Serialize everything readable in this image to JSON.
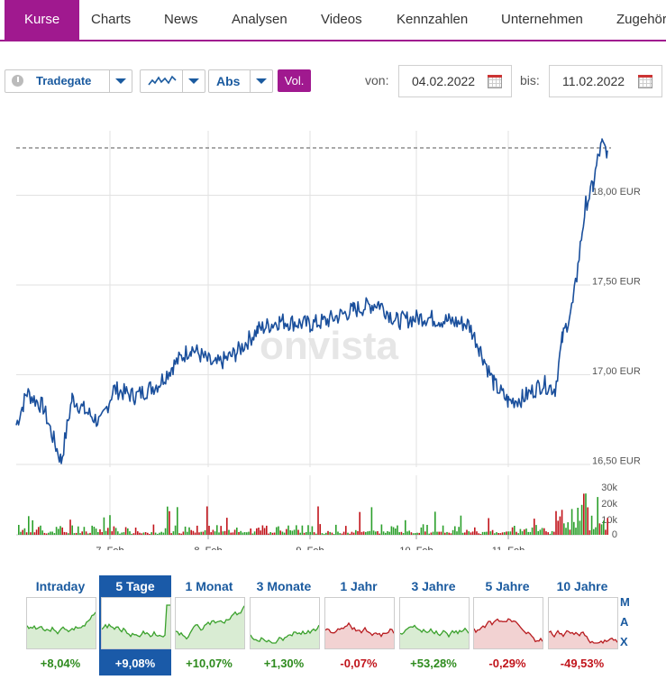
{
  "nav": {
    "tabs": [
      "Kurse",
      "Charts",
      "News",
      "Analysen",
      "Videos",
      "Kennzahlen",
      "Unternehmen",
      "Zugehör"
    ],
    "active": "Kurse"
  },
  "toolbar": {
    "exchange": "Tradegate",
    "chart_icon": "line-chart-icon",
    "mode": "Abs",
    "volume_toggle": "Vol.",
    "from_label": "von:",
    "from_date": "04.02.2022",
    "to_label": "bis:",
    "to_date": "11.02.2022"
  },
  "chart": {
    "watermark": "onvista",
    "y_labels": [
      "18,00 EUR",
      "17,50 EUR",
      "17,00 EUR",
      "16,50 EUR"
    ],
    "x_labels": [
      "7. Feb",
      "8. Feb",
      "9. Feb",
      "10. Feb",
      "11. Feb"
    ],
    "vol_labels": [
      "30k",
      "20k",
      "10k",
      "0"
    ],
    "line_color": "#1a4f9c",
    "colors": {
      "accent": "#a0198f",
      "up": "#2ca02c",
      "down": "#c1141b"
    }
  },
  "chart_data": {
    "type": "line",
    "title": "",
    "xlabel": "",
    "ylabel": "EUR",
    "ylim": [
      16.5,
      18.5
    ],
    "x": [
      "04.02.2022",
      "07.02.2022",
      "08.02.2022",
      "09.02.2022",
      "10.02.2022",
      "11.02.2022"
    ],
    "series": [
      {
        "values": [
          16.72,
          16.88,
          17.05,
          17.3,
          17.3,
          18.25
        ]
      }
    ],
    "volume_unit": "k"
  },
  "periods": [
    {
      "label": "Intraday",
      "change": "+8,04%",
      "trend": "up"
    },
    {
      "label": "5 Tage",
      "change": "+9,08%",
      "trend": "up",
      "active": true
    },
    {
      "label": "1 Monat",
      "change": "+10,07%",
      "trend": "up"
    },
    {
      "label": "3 Monate",
      "change": "+1,30%",
      "trend": "up"
    },
    {
      "label": "1 Jahr",
      "change": "-0,07%",
      "trend": "down"
    },
    {
      "label": "3 Jahre",
      "change": "+53,28%",
      "trend": "up"
    },
    {
      "label": "5 Jahre",
      "change": "-0,29%",
      "trend": "down"
    },
    {
      "label": "10 Jahre",
      "change": "-49,53%",
      "trend": "down"
    }
  ],
  "max_label": [
    "M",
    "A",
    "X"
  ]
}
